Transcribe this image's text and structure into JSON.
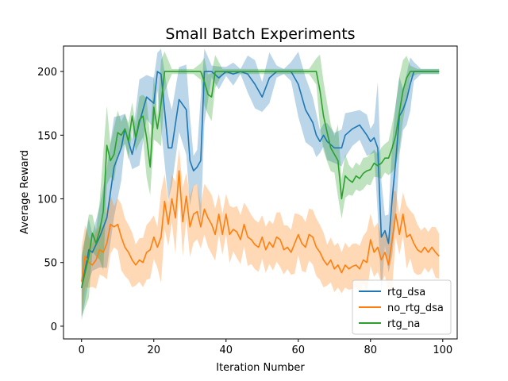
{
  "chart_data": {
    "type": "line",
    "title": "Small Batch Experiments",
    "xlabel": "Iteration Number",
    "ylabel": "Average Reward",
    "xlim": [
      -5,
      104
    ],
    "ylim": [
      -10,
      220
    ],
    "xticks": [
      0,
      20,
      40,
      60,
      80,
      100
    ],
    "yticks": [
      0,
      50,
      100,
      150,
      200
    ],
    "legend_position": "lower-right",
    "series": [
      {
        "name": "rtg_dsa",
        "color": "#1f77b4",
        "points": [
          [
            0,
            30
          ],
          [
            2,
            60
          ],
          [
            3,
            58
          ],
          [
            5,
            70
          ],
          [
            7,
            85
          ],
          [
            9,
            125
          ],
          [
            11,
            140
          ],
          [
            12,
            155
          ],
          [
            14,
            135
          ],
          [
            16,
            160
          ],
          [
            18,
            180
          ],
          [
            20,
            175
          ],
          [
            21,
            200
          ],
          [
            22,
            198
          ],
          [
            24,
            140
          ],
          [
            25,
            140
          ],
          [
            27,
            178
          ],
          [
            29,
            170
          ],
          [
            30,
            130
          ],
          [
            31,
            122
          ],
          [
            32,
            125
          ],
          [
            33,
            130
          ],
          [
            34,
            200
          ],
          [
            36,
            200
          ],
          [
            38,
            195
          ],
          [
            40,
            200
          ],
          [
            42,
            198
          ],
          [
            44,
            200
          ],
          [
            46,
            198
          ],
          [
            48,
            190
          ],
          [
            50,
            180
          ],
          [
            52,
            195
          ],
          [
            54,
            200
          ],
          [
            56,
            200
          ],
          [
            58,
            200
          ],
          [
            60,
            190
          ],
          [
            62,
            170
          ],
          [
            64,
            160
          ],
          [
            65,
            150
          ],
          [
            66,
            145
          ],
          [
            67,
            150
          ],
          [
            68,
            145
          ],
          [
            70,
            140
          ],
          [
            72,
            140
          ],
          [
            73,
            150
          ],
          [
            75,
            155
          ],
          [
            77,
            158
          ],
          [
            79,
            150
          ],
          [
            80,
            145
          ],
          [
            81,
            148
          ],
          [
            82,
            140
          ],
          [
            83,
            70
          ],
          [
            84,
            75
          ],
          [
            85,
            65
          ],
          [
            86,
            100
          ],
          [
            87,
            130
          ],
          [
            88,
            165
          ],
          [
            89,
            170
          ],
          [
            90,
            178
          ],
          [
            91,
            190
          ],
          [
            92,
            200
          ],
          [
            94,
            200
          ],
          [
            96,
            200
          ],
          [
            98,
            200
          ],
          [
            99,
            200
          ]
        ]
      },
      {
        "name": "no_rtg_dsa",
        "color": "#ff7f0e",
        "points": [
          [
            0,
            35
          ],
          [
            1,
            55
          ],
          [
            2,
            50
          ],
          [
            3,
            48
          ],
          [
            4,
            52
          ],
          [
            5,
            60
          ],
          [
            6,
            58
          ],
          [
            7,
            65
          ],
          [
            8,
            80
          ],
          [
            9,
            78
          ],
          [
            10,
            80
          ],
          [
            11,
            70
          ],
          [
            12,
            62
          ],
          [
            13,
            58
          ],
          [
            14,
            52
          ],
          [
            15,
            48
          ],
          [
            16,
            52
          ],
          [
            17,
            50
          ],
          [
            18,
            58
          ],
          [
            19,
            60
          ],
          [
            20,
            70
          ],
          [
            21,
            62
          ],
          [
            22,
            70
          ],
          [
            23,
            98
          ],
          [
            24,
            80
          ],
          [
            25,
            100
          ],
          [
            26,
            85
          ],
          [
            27,
            122
          ],
          [
            28,
            82
          ],
          [
            29,
            102
          ],
          [
            30,
            78
          ],
          [
            31,
            88
          ],
          [
            32,
            90
          ],
          [
            33,
            78
          ],
          [
            34,
            92
          ],
          [
            35,
            85
          ],
          [
            36,
            80
          ],
          [
            37,
            72
          ],
          [
            38,
            88
          ],
          [
            39,
            72
          ],
          [
            40,
            88
          ],
          [
            41,
            72
          ],
          [
            42,
            76
          ],
          [
            43,
            74
          ],
          [
            44,
            68
          ],
          [
            45,
            80
          ],
          [
            46,
            70
          ],
          [
            47,
            68
          ],
          [
            48,
            64
          ],
          [
            49,
            62
          ],
          [
            50,
            70
          ],
          [
            51,
            60
          ],
          [
            52,
            66
          ],
          [
            53,
            62
          ],
          [
            54,
            70
          ],
          [
            55,
            68
          ],
          [
            56,
            60
          ],
          [
            57,
            62
          ],
          [
            58,
            58
          ],
          [
            59,
            65
          ],
          [
            60,
            72
          ],
          [
            61,
            65
          ],
          [
            62,
            62
          ],
          [
            63,
            72
          ],
          [
            64,
            70
          ],
          [
            65,
            62
          ],
          [
            66,
            58
          ],
          [
            67,
            52
          ],
          [
            68,
            48
          ],
          [
            69,
            52
          ],
          [
            70,
            45
          ],
          [
            71,
            48
          ],
          [
            72,
            42
          ],
          [
            73,
            48
          ],
          [
            74,
            45
          ],
          [
            75,
            47
          ],
          [
            76,
            48
          ],
          [
            77,
            45
          ],
          [
            78,
            52
          ],
          [
            79,
            50
          ],
          [
            80,
            68
          ],
          [
            81,
            58
          ],
          [
            82,
            62
          ],
          [
            83,
            52
          ],
          [
            84,
            58
          ],
          [
            85,
            48
          ],
          [
            86,
            68
          ],
          [
            87,
            88
          ],
          [
            88,
            72
          ],
          [
            89,
            88
          ],
          [
            90,
            70
          ],
          [
            91,
            72
          ],
          [
            92,
            65
          ],
          [
            93,
            60
          ],
          [
            94,
            58
          ],
          [
            95,
            62
          ],
          [
            96,
            58
          ],
          [
            97,
            62
          ],
          [
            98,
            58
          ],
          [
            99,
            55
          ]
        ]
      },
      {
        "name": "rtg_na",
        "color": "#2ca02c",
        "points": [
          [
            0,
            30
          ],
          [
            2,
            55
          ],
          [
            3,
            73
          ],
          [
            4,
            65
          ],
          [
            5,
            75
          ],
          [
            6,
            90
          ],
          [
            7,
            142
          ],
          [
            8,
            130
          ],
          [
            9,
            135
          ],
          [
            10,
            152
          ],
          [
            11,
            150
          ],
          [
            12,
            155
          ],
          [
            13,
            145
          ],
          [
            14,
            165
          ],
          [
            15,
            148
          ],
          [
            16,
            162
          ],
          [
            17,
            165
          ],
          [
            18,
            148
          ],
          [
            19,
            125
          ],
          [
            20,
            172
          ],
          [
            21,
            155
          ],
          [
            22,
            175
          ],
          [
            23,
            200
          ],
          [
            25,
            200
          ],
          [
            27,
            200
          ],
          [
            29,
            200
          ],
          [
            31,
            200
          ],
          [
            33,
            200
          ],
          [
            34,
            192
          ],
          [
            35,
            182
          ],
          [
            36,
            180
          ],
          [
            37,
            200
          ],
          [
            39,
            200
          ],
          [
            41,
            200
          ],
          [
            43,
            200
          ],
          [
            45,
            200
          ],
          [
            47,
            200
          ],
          [
            49,
            200
          ],
          [
            51,
            200
          ],
          [
            53,
            200
          ],
          [
            55,
            200
          ],
          [
            57,
            200
          ],
          [
            59,
            200
          ],
          [
            61,
            200
          ],
          [
            63,
            200
          ],
          [
            65,
            200
          ],
          [
            66,
            185
          ],
          [
            67,
            165
          ],
          [
            68,
            152
          ],
          [
            69,
            140
          ],
          [
            70,
            135
          ],
          [
            71,
            130
          ],
          [
            72,
            100
          ],
          [
            73,
            118
          ],
          [
            74,
            115
          ],
          [
            75,
            113
          ],
          [
            76,
            118
          ],
          [
            77,
            116
          ],
          [
            78,
            120
          ],
          [
            79,
            122
          ],
          [
            80,
            123
          ],
          [
            81,
            128
          ],
          [
            82,
            126
          ],
          [
            83,
            128
          ],
          [
            84,
            132
          ],
          [
            85,
            132
          ],
          [
            86,
            140
          ],
          [
            87,
            150
          ],
          [
            88,
            168
          ],
          [
            89,
            185
          ],
          [
            90,
            195
          ],
          [
            91,
            200
          ],
          [
            93,
            200
          ],
          [
            95,
            200
          ],
          [
            97,
            200
          ],
          [
            99,
            200
          ]
        ]
      }
    ]
  }
}
